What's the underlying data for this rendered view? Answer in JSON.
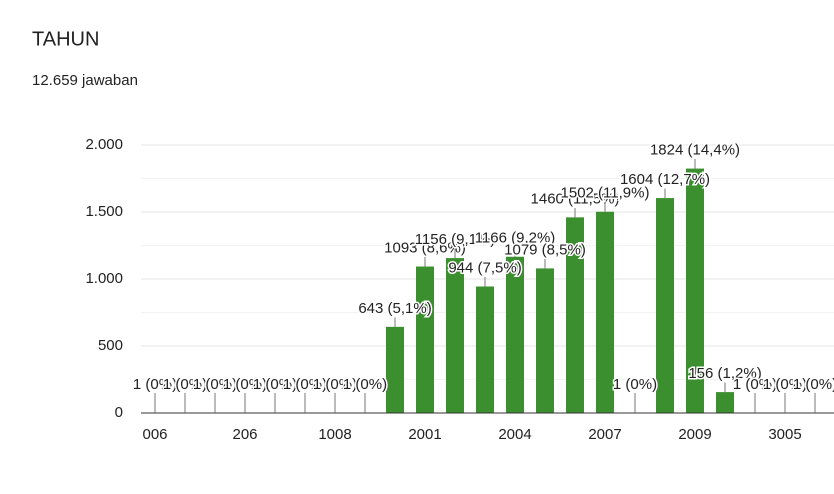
{
  "header": {
    "title": "TAHUN",
    "subtitle": "12.659 jawaban"
  },
  "chart_data": {
    "type": "bar",
    "color": "#3c8f2f",
    "grid": true,
    "categories": [
      "006",
      null,
      null,
      "206",
      null,
      null,
      "1008",
      null,
      null,
      "2001",
      null,
      null,
      "2004",
      null,
      null,
      "2007",
      null,
      null,
      "2009",
      null,
      null,
      "3005",
      null
    ],
    "values": [
      1,
      1,
      1,
      1,
      1,
      1,
      1,
      1,
      643,
      1093,
      1156,
      944,
      1166,
      1079,
      1460,
      1502,
      1,
      1604,
      1824,
      156,
      1,
      1,
      1
    ],
    "value_labels": [
      "1 (0%)",
      "1 (0%)",
      "1 (0%)",
      "1 (0%)",
      "1 (0%)",
      "1 (0%)",
      "1 (0%)",
      "1 (0%)",
      "643 (5,1%)",
      "1093 (8,6%)",
      "1156 (9,1%)",
      "944 (7,5%)",
      "1166 (9,2%)",
      "1079 (8,5%)",
      "1460 (11,5%)",
      "1502 (11,9%)",
      "1 (0%)",
      "1604 (12,7%)",
      "1824 (14,4%)",
      "156 (1,2%)",
      "1 (0%)",
      "1 (0%)",
      "1 (0%)"
    ],
    "ylim": [
      0,
      2000
    ],
    "yticks": [
      0,
      500,
      {
        "value": 1000,
        "label": "1.000"
      },
      {
        "value": 1500,
        "label": "1.500"
      },
      {
        "value": 2000,
        "label": "2.000"
      }
    ]
  }
}
